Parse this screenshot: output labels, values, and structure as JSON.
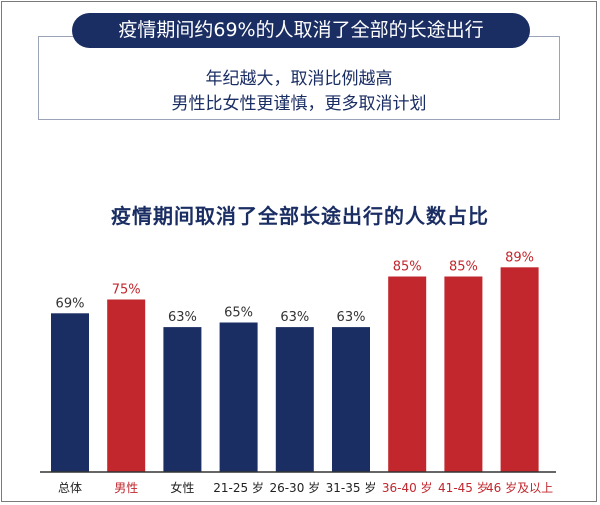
{
  "header": {
    "headline": "疫情期间约69%的人取消了全部的长途出行",
    "subline_1": "年纪越大，取消比例越高",
    "subline_2": "男性比女性更谨慎，更多取消计划"
  },
  "colors": {
    "navy": "#1b2e63",
    "red": "#c1272d",
    "axis": "#333333"
  },
  "chart_data": {
    "type": "bar",
    "title": "疫情期间取消了全部长途出行的人数占比",
    "categories": [
      "总体",
      "男性",
      "女性",
      "21-25 岁",
      "26-30 岁",
      "31-35 岁",
      "36-40 岁",
      "41-45 岁",
      "46 岁及以上"
    ],
    "values": [
      69,
      75,
      63,
      65,
      63,
      63,
      85,
      85,
      89
    ],
    "value_labels": [
      "69%",
      "75%",
      "63%",
      "65%",
      "63%",
      "63%",
      "85%",
      "85%",
      "89%"
    ],
    "highlight": [
      false,
      true,
      false,
      false,
      false,
      false,
      true,
      true,
      true
    ],
    "xlabel": "",
    "ylabel": "",
    "ylim": [
      0,
      100
    ],
    "grid": false,
    "legend": "none"
  }
}
